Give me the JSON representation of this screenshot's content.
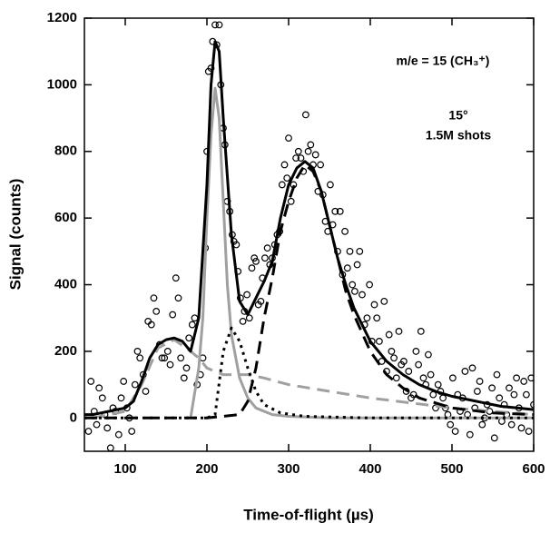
{
  "chart_data": {
    "type": "scatter",
    "annotations": [
      "m/e = 15 (CH₃⁺)",
      "15°",
      "1.5M shots"
    ],
    "xlabel": "Time-of-flight (µs)",
    "ylabel": "Signal (counts)",
    "xlim": [
      50,
      600
    ],
    "ylim": [
      -100,
      1200
    ],
    "xticks": [
      100,
      200,
      300,
      400,
      500,
      600
    ],
    "yticks": [
      0,
      200,
      400,
      600,
      800,
      1000,
      1200
    ],
    "series": [
      {
        "type": "scatter",
        "color": "#000000",
        "x": [
          55,
          58,
          62,
          65,
          68,
          72,
          75,
          78,
          82,
          85,
          88,
          92,
          95,
          98,
          102,
          105,
          108,
          112,
          115,
          118,
          122,
          125,
          128,
          132,
          135,
          138,
          142,
          145,
          148,
          152,
          155,
          158,
          162,
          165,
          168,
          172,
          175,
          178,
          182,
          185,
          188,
          192,
          195,
          198,
          200,
          202,
          205,
          207,
          210,
          212,
          215,
          217,
          220,
          222,
          225,
          228,
          231,
          233,
          236,
          238,
          241,
          244,
          246,
          249,
          252,
          255,
          258,
          260,
          263,
          266,
          268,
          271,
          274,
          277,
          280,
          283,
          286,
          289,
          292,
          295,
          298,
          300,
          303,
          306,
          309,
          312,
          315,
          318,
          321,
          324,
          327,
          330,
          333,
          336,
          339,
          342,
          345,
          348,
          351,
          354,
          357,
          360,
          363,
          366,
          369,
          372,
          375,
          378,
          381,
          384,
          387,
          390,
          393,
          396,
          399,
          402,
          405,
          408,
          411,
          414,
          417,
          420,
          423,
          426,
          429,
          432,
          435,
          438,
          441,
          444,
          447,
          450,
          453,
          456,
          459,
          462,
          465,
          468,
          471,
          474,
          477,
          480,
          483,
          486,
          489,
          492,
          495,
          498,
          501,
          504,
          507,
          510,
          513,
          516,
          519,
          522,
          525,
          528,
          531,
          534,
          537,
          540,
          543,
          546,
          549,
          552,
          555,
          558,
          561,
          564,
          567,
          570,
          573,
          576,
          579,
          582,
          585,
          588,
          591,
          594,
          597,
          600
        ],
        "values": [
          -40,
          110,
          20,
          -20,
          90,
          60,
          10,
          -30,
          -90,
          30,
          20,
          -50,
          60,
          110,
          30,
          0,
          -40,
          100,
          200,
          180,
          130,
          80,
          290,
          280,
          360,
          320,
          220,
          180,
          180,
          200,
          160,
          310,
          420,
          360,
          180,
          120,
          150,
          240,
          280,
          300,
          100,
          130,
          180,
          510,
          800,
          1040,
          1050,
          1130,
          1180,
          1120,
          1180,
          1000,
          870,
          820,
          650,
          620,
          550,
          530,
          520,
          440,
          360,
          290,
          320,
          370,
          300,
          450,
          480,
          470,
          340,
          350,
          420,
          480,
          510,
          460,
          480,
          520,
          550,
          560,
          700,
          760,
          720,
          840,
          650,
          700,
          780,
          800,
          780,
          740,
          910,
          800,
          820,
          760,
          790,
          680,
          760,
          670,
          590,
          560,
          700,
          580,
          620,
          500,
          620,
          430,
          560,
          450,
          500,
          400,
          380,
          460,
          500,
          370,
          280,
          300,
          400,
          230,
          340,
          300,
          230,
          170,
          350,
          140,
          250,
          200,
          180,
          120,
          260,
          160,
          170,
          80,
          140,
          60,
          70,
          200,
          160,
          260,
          120,
          100,
          190,
          130,
          70,
          30,
          100,
          80,
          60,
          30,
          10,
          -20,
          120,
          -40,
          70,
          20,
          60,
          140,
          10,
          -50,
          150,
          30,
          80,
          110,
          -20,
          0,
          40,
          20,
          90,
          -60,
          130,
          60,
          -10,
          40,
          10,
          90,
          -20,
          70,
          120,
          30,
          -30,
          110,
          70,
          -40,
          120,
          40
        ]
      },
      {
        "type": "line",
        "color": "#a0a0a0",
        "dash": "dashed",
        "x": [
          60,
          100,
          120,
          140,
          160,
          180,
          190,
          200,
          220,
          250,
          270,
          300,
          350,
          400,
          450,
          500,
          550,
          600
        ],
        "values": [
          0,
          20,
          100,
          210,
          235,
          200,
          180,
          150,
          130,
          130,
          120,
          100,
          80,
          60,
          45,
          30,
          20,
          10
        ]
      },
      {
        "type": "line",
        "color": "#a0a0a0",
        "dash": "solid",
        "x": [
          180,
          190,
          195,
          200,
          205,
          210,
          215,
          220,
          225,
          230,
          240,
          250,
          260,
          280,
          300,
          350,
          600
        ],
        "values": [
          0,
          150,
          300,
          600,
          850,
          990,
          900,
          650,
          400,
          250,
          120,
          60,
          30,
          10,
          5,
          0,
          0
        ]
      },
      {
        "type": "line",
        "color": "#000000",
        "dash": "dotted",
        "x": [
          50,
          200,
          210,
          220,
          230,
          240,
          250,
          260,
          270,
          290,
          320,
          400,
          600
        ],
        "values": [
          0,
          0,
          10,
          200,
          270,
          230,
          150,
          80,
          40,
          15,
          5,
          0,
          0
        ]
      },
      {
        "type": "line",
        "color": "#000000",
        "dash": "dashed",
        "x": [
          50,
          200,
          240,
          250,
          260,
          270,
          280,
          290,
          300,
          310,
          320,
          330,
          340,
          350,
          360,
          370,
          380,
          400,
          420,
          440,
          460,
          500,
          550,
          600
        ],
        "values": [
          0,
          0,
          10,
          50,
          150,
          300,
          420,
          560,
          650,
          720,
          760,
          740,
          680,
          580,
          480,
          380,
          310,
          200,
          130,
          90,
          60,
          30,
          15,
          10
        ]
      },
      {
        "type": "line",
        "color": "#000000",
        "dash": "solid",
        "x": [
          50,
          60,
          70,
          80,
          90,
          100,
          110,
          120,
          130,
          140,
          150,
          160,
          170,
          180,
          190,
          200,
          205,
          210,
          215,
          220,
          230,
          240,
          250,
          260,
          270,
          280,
          290,
          300,
          310,
          320,
          330,
          340,
          350,
          360,
          370,
          380,
          390,
          400,
          420,
          440,
          460,
          480,
          500,
          520,
          540,
          560,
          580,
          600
        ],
        "values": [
          10,
          10,
          15,
          20,
          25,
          30,
          50,
          110,
          180,
          220,
          235,
          240,
          230,
          200,
          300,
          700,
          1000,
          1130,
          1100,
          900,
          550,
          350,
          310,
          360,
          410,
          470,
          600,
          700,
          750,
          770,
          750,
          680,
          580,
          480,
          400,
          330,
          280,
          230,
          170,
          130,
          100,
          80,
          65,
          55,
          45,
          35,
          30,
          25
        ]
      }
    ]
  }
}
